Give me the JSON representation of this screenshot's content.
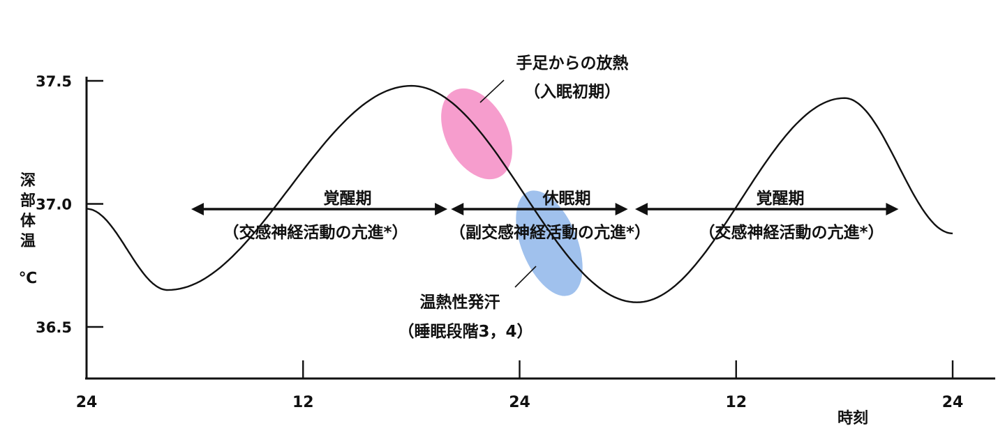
{
  "chart_data": {
    "type": "line",
    "ylabel_chars": [
      "深",
      "部",
      "体",
      "温"
    ],
    "yunit": "℃",
    "xlabel": "時刻",
    "y_ticks": [
      37.5,
      37.0,
      36.5
    ],
    "y_tick_labels": [
      "37.5",
      "37.0",
      "36.5"
    ],
    "ylim": [
      36.3,
      37.55
    ],
    "x_tick_labels": [
      "24",
      "12",
      "24",
      "12",
      "24"
    ],
    "xlim": [
      0,
      48
    ],
    "grid": false,
    "legend": "none",
    "series": [
      {
        "color": "#111111",
        "x": [
          0,
          4.5,
          18,
          30.5,
          42,
          48
        ],
        "y": [
          36.98,
          36.65,
          37.48,
          36.6,
          37.43,
          36.88
        ]
      }
    ],
    "phases": [
      {
        "label": "覚醒期",
        "note": "（交感神経活動の亢進*）",
        "x_start": 5.8,
        "x_end": 20.0
      },
      {
        "label": "休眠期",
        "note": "（副交感神経活動の亢進*）",
        "x_start": 20.2,
        "x_end": 30.0
      },
      {
        "label": "覚醒期",
        "note": "（交感神経活動の亢進*）",
        "x_start": 30.4,
        "x_end": 45.0
      }
    ],
    "annotations": [
      {
        "line1": "手足からの放熱",
        "line2": "（入眠初期）",
        "color": "#f48cc4"
      },
      {
        "line1": "温熱性発汗",
        "line2": "（睡眠段階3，4）",
        "color": "#8fb6ea"
      }
    ]
  }
}
